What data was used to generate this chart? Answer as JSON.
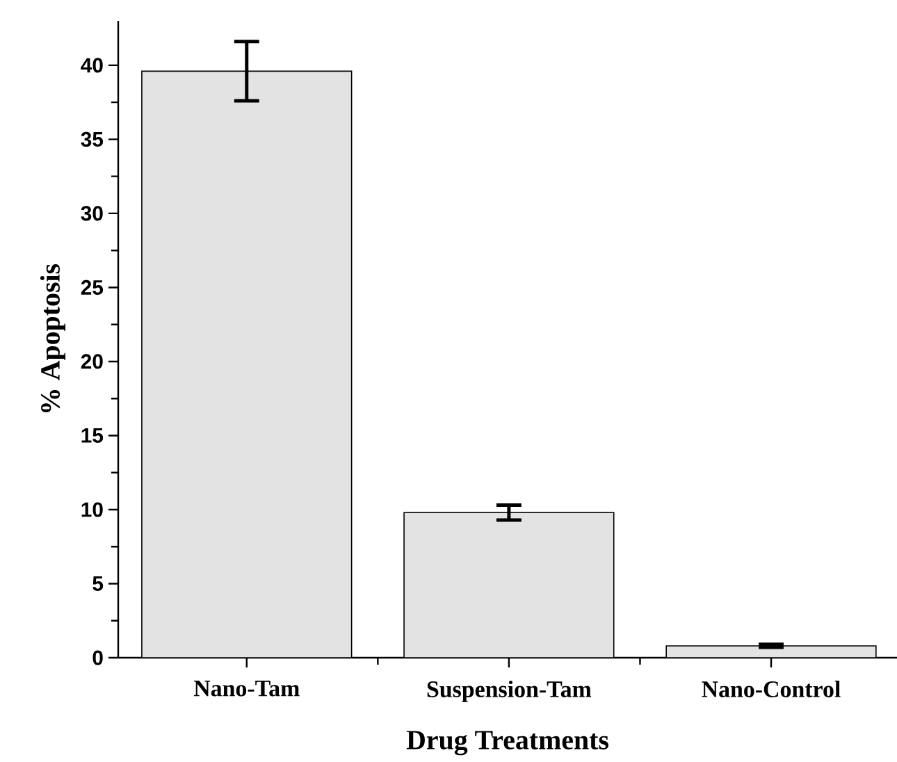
{
  "chart_data": {
    "type": "bar",
    "xlabel": "Drug Treatments",
    "ylabel": "% Apoptosis",
    "categories": [
      "Nano-Tam",
      "Suspension-Tam",
      "Nano-Control"
    ],
    "values": [
      39.6,
      9.8,
      0.8
    ],
    "errors": [
      2,
      0.5,
      0.1
    ],
    "color": "#e3e3e3",
    "ylim": [
      0,
      43
    ],
    "yticks": [
      0,
      5,
      10,
      15,
      20,
      25,
      30,
      35,
      40
    ],
    "grid": false
  }
}
